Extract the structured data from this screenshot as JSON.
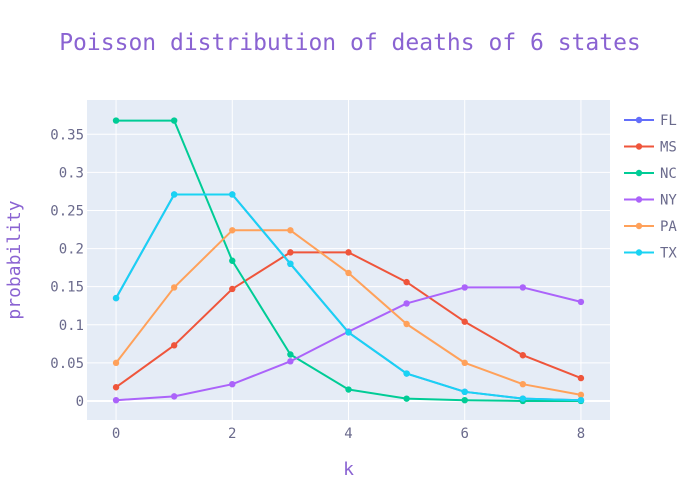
{
  "colors": {
    "plot_bg": "#e5ecf6",
    "grid": "#ffffff",
    "title": "#8a63d2",
    "axis_label": "#8a63d2",
    "tick": "#6a6a8c"
  },
  "chart_data": {
    "type": "line",
    "title": "Poisson distribution of deaths of 6 states",
    "xlabel": "k",
    "ylabel": "probability",
    "xlim": [
      -0.5,
      8.5
    ],
    "ylim": [
      -0.025,
      0.395
    ],
    "x": [
      0,
      1,
      2,
      3,
      4,
      5,
      6,
      7,
      8
    ],
    "x_ticks": [
      0,
      2,
      4,
      6,
      8
    ],
    "x_tick_labels": [
      "0",
      "2",
      "4",
      "6",
      "8"
    ],
    "y_ticks": [
      0,
      0.05,
      0.1,
      0.15,
      0.2,
      0.25,
      0.3,
      0.35
    ],
    "y_tick_labels": [
      "0",
      "0.05",
      "0.1",
      "0.15",
      "0.2",
      "0.25",
      "0.3",
      "0.35"
    ],
    "grid": true,
    "legend_position": "right",
    "series": [
      {
        "name": "FL",
        "color": "#636efa",
        "values": [
          0.135,
          0.271,
          0.271,
          0.18,
          0.09,
          0.036,
          0.012,
          0.003,
          0.001
        ]
      },
      {
        "name": "MS",
        "color": "#ef553b",
        "values": [
          0.018,
          0.073,
          0.147,
          0.195,
          0.195,
          0.156,
          0.104,
          0.06,
          0.03
        ]
      },
      {
        "name": "NC",
        "color": "#00cc96",
        "values": [
          0.368,
          0.368,
          0.184,
          0.061,
          0.015,
          0.003,
          0.001,
          0.0,
          0.0
        ]
      },
      {
        "name": "NY",
        "color": "#ab63fa",
        "values": [
          0.001,
          0.006,
          0.022,
          0.052,
          0.091,
          0.128,
          0.149,
          0.149,
          0.13
        ]
      },
      {
        "name": "PA",
        "color": "#ffa15a",
        "values": [
          0.05,
          0.149,
          0.224,
          0.224,
          0.168,
          0.101,
          0.05,
          0.022,
          0.008
        ]
      },
      {
        "name": "TX",
        "color": "#19d3f3",
        "values": [
          0.135,
          0.271,
          0.271,
          0.18,
          0.09,
          0.036,
          0.012,
          0.003,
          0.001
        ]
      }
    ]
  }
}
